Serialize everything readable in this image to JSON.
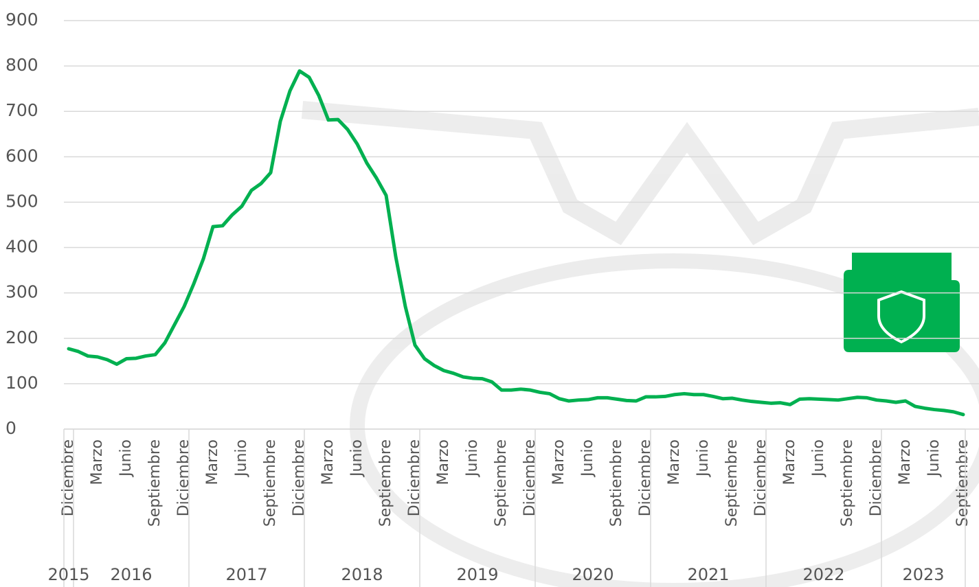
{
  "chart_data": {
    "type": "line",
    "categories": [
      "Diciembre",
      null,
      null,
      "Marzo",
      null,
      null,
      "Junio",
      null,
      null,
      "Septiembre",
      null,
      null,
      "Diciembre",
      null,
      null,
      "Marzo",
      null,
      null,
      "Junio",
      null,
      null,
      "Septiembre",
      null,
      null,
      "Diciembre",
      null,
      null,
      "Marzo",
      null,
      null,
      "Junio",
      null,
      null,
      "Septiembre",
      null,
      null,
      "Diciembre",
      null,
      null,
      "Marzo",
      null,
      null,
      "Junio",
      null,
      null,
      "Septiembre",
      null,
      null,
      "Diciembre",
      null,
      null,
      "Marzo",
      null,
      null,
      "Junio",
      null,
      null,
      "Septiembre",
      null,
      null,
      "Diciembre",
      null,
      null,
      "Marzo",
      null,
      null,
      "Junio",
      null,
      null,
      "Septiembre",
      null,
      null,
      "Diciembre",
      null,
      null,
      "Marzo",
      null,
      null,
      "Junio",
      null,
      null,
      "Septiembre",
      null,
      null,
      "Diciembre",
      null,
      null,
      "Marzo",
      null,
      null,
      "Junio",
      null,
      null,
      "Septiembre"
    ],
    "years": [
      "2015",
      "2016",
      "2017",
      "2018",
      "2019",
      "2020",
      "2021",
      "2022",
      "2023"
    ],
    "values": [
      177,
      171,
      161,
      159,
      153,
      143,
      155,
      156,
      161,
      164,
      190,
      230,
      270,
      320,
      375,
      446,
      448,
      472,
      491,
      526,
      541,
      565,
      678,
      745,
      789,
      775,
      735,
      681,
      682,
      660,
      628,
      586,
      553,
      515,
      380,
      270,
      185,
      155,
      140,
      129,
      123,
      115,
      112,
      111,
      104,
      86,
      86,
      88,
      86,
      81,
      78,
      67,
      62,
      64,
      65,
      69,
      69,
      66,
      63,
      62,
      71,
      71,
      72,
      76,
      78,
      76,
      76,
      72,
      67,
      68,
      64,
      61,
      59,
      57,
      58,
      54,
      66,
      67,
      66,
      65,
      64,
      67,
      70,
      69,
      64,
      62,
      59,
      62,
      50,
      46,
      43,
      41,
      38,
      32
    ],
    "color": "#00b050",
    "ylim": [
      0,
      900
    ],
    "yticks": [
      0,
      100,
      200,
      300,
      400,
      500,
      600,
      700,
      800,
      900
    ],
    "grid": true
  }
}
